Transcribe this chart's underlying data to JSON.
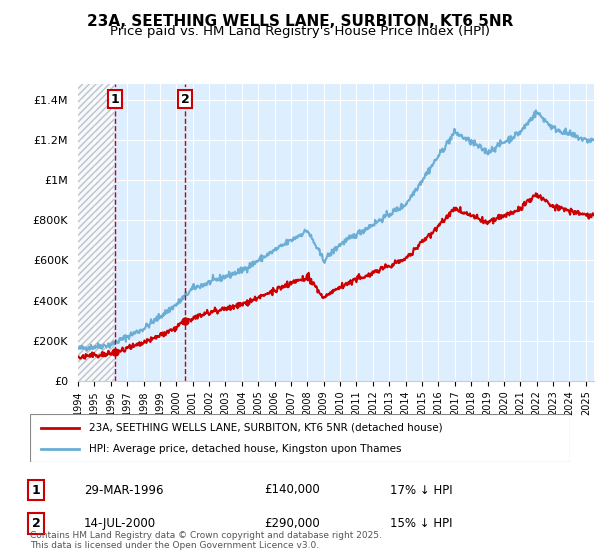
{
  "title_line1": "23A, SEETHING WELLS LANE, SURBITON, KT6 5NR",
  "title_line2": "Price paid vs. HM Land Registry's House Price Index (HPI)",
  "ylabel_ticks": [
    "£0",
    "£200K",
    "£400K",
    "£600K",
    "£800K",
    "£1M",
    "£1.2M",
    "£1.4M"
  ],
  "ytick_values": [
    0,
    200000,
    400000,
    600000,
    800000,
    1000000,
    1200000,
    1400000
  ],
  "ylim": [
    0,
    1480000
  ],
  "xlim_start": 1994.0,
  "xlim_end": 2025.5,
  "xtick_years": [
    1994,
    1995,
    1996,
    1997,
    1998,
    1999,
    2000,
    2001,
    2002,
    2003,
    2004,
    2005,
    2006,
    2007,
    2008,
    2009,
    2010,
    2011,
    2012,
    2013,
    2014,
    2015,
    2016,
    2017,
    2018,
    2019,
    2020,
    2021,
    2022,
    2023,
    2024,
    2025
  ],
  "hpi_color": "#6aaed6",
  "price_color": "#cc0000",
  "vline_color": "#cc0000",
  "hatch_color": "#cccccc",
  "background_plot": "#ddeeff",
  "sale1_x": 1996.24,
  "sale1_y": 140000,
  "sale2_x": 2000.54,
  "sale2_y": 290000,
  "legend_label_red": "23A, SEETHING WELLS LANE, SURBITON, KT6 5NR (detached house)",
  "legend_label_blue": "HPI: Average price, detached house, Kingston upon Thames",
  "table_row1_num": "1",
  "table_row1_date": "29-MAR-1996",
  "table_row1_price": "£140,000",
  "table_row1_hpi": "17% ↓ HPI",
  "table_row2_num": "2",
  "table_row2_date": "14-JUL-2000",
  "table_row2_price": "£290,000",
  "table_row2_hpi": "15% ↓ HPI",
  "footer": "Contains HM Land Registry data © Crown copyright and database right 2025.\nThis data is licensed under the Open Government Licence v3.0.",
  "title_fontsize": 11,
  "subtitle_fontsize": 9.5
}
